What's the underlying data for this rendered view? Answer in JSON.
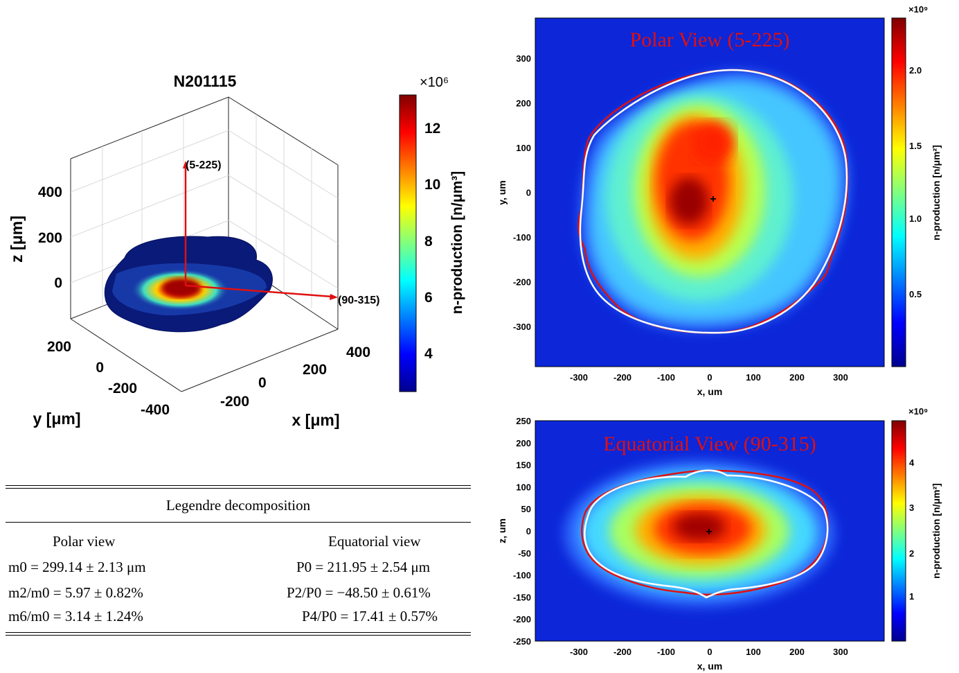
{
  "left_figure": {
    "title": "N201115",
    "z_ticks": [
      "400",
      "200",
      "0"
    ],
    "y_ticks": [
      "200",
      "0",
      "-200",
      "-400"
    ],
    "x_ticks": [
      "400",
      "200",
      "0",
      "-200"
    ],
    "z_label": "z [μm]",
    "y_label": "y [μm]",
    "x_label": "x [μm]",
    "arrow_polar": "(5-225)",
    "arrow_equatorial": "(90-315)",
    "colorbar": {
      "exponent": "×10⁶",
      "ticks": [
        "12",
        "10",
        "8",
        "6",
        "4"
      ],
      "label": "n-production [n/μm³]"
    }
  },
  "table": {
    "title": "Legendre decomposition",
    "headers": [
      "Polar view",
      "Equatorial view"
    ],
    "rows": [
      [
        "m0 = 299.14 ± 2.13 μm",
        "P0 = 211.95 ± 2.54 μm"
      ],
      [
        "m2/m0 = 5.97 ± 0.82%",
        "P2/P0 = −48.50 ± 0.61%"
      ],
      [
        "m6/m0 = 3.14 ± 1.24%",
        "P4/P0 = 17.41 ± 0.57%"
      ]
    ]
  },
  "chart_data": [
    {
      "type": "heatmap",
      "title": "Polar View (5-225)",
      "xlabel": "x, um",
      "ylabel": "y, um",
      "xlim": [
        -400,
        400
      ],
      "ylim": [
        -390,
        390
      ],
      "x_ticks": [
        -300,
        -200,
        -100,
        0,
        100,
        200,
        300
      ],
      "y_ticks": [
        300,
        200,
        100,
        0,
        -100,
        -200,
        -300
      ],
      "colorbar": {
        "exponent": "×10⁹",
        "ticks": [
          "2.0",
          "1.5",
          "1.0",
          "0.5"
        ],
        "label": "n-production [n/μm²]",
        "range": [
          0.05,
          2.3
        ]
      },
      "center_marker": {
        "x": 8,
        "y": -18
      },
      "contour_legendre_fit_color": "#ffffff",
      "contour_measured_color": "#d01010"
    },
    {
      "type": "heatmap",
      "title": "Equatorial View (90-315)",
      "xlabel": "x, um",
      "ylabel": "z, um",
      "xlim": [
        -400,
        400
      ],
      "ylim": [
        -250,
        250
      ],
      "x_ticks": [
        -300,
        -200,
        -100,
        0,
        100,
        200,
        300
      ],
      "y_ticks": [
        250,
        200,
        150,
        100,
        50,
        0,
        -50,
        -100,
        -150,
        -200,
        -250
      ],
      "colorbar": {
        "exponent": "×10⁹",
        "ticks": [
          "4",
          "3",
          "2",
          "1"
        ],
        "label": "n-production [n/μm²]",
        "range": [
          0.1,
          4.9
        ]
      },
      "center_marker": {
        "x": 0,
        "y": 0
      },
      "contour_legendre_fit_color": "#ffffff",
      "contour_measured_color": "#d01010"
    }
  ]
}
